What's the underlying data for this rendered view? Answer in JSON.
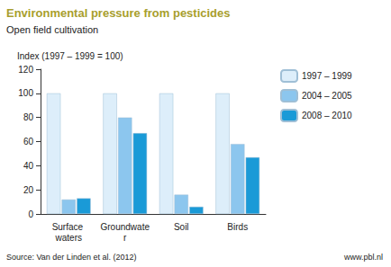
{
  "chart_data": {
    "type": "bar",
    "title": "Environmental pressure from pesticides",
    "subtitle": "Open field cultivation",
    "ylabel": "Index (1997 – 1999 = 100)",
    "annotations": [
      "Source: Van der Linden et al. (2012)",
      "www.pbl.nl"
    ],
    "categories": [
      "Surface waters",
      "Groundwater",
      "Soil",
      "Birds"
    ],
    "series": [
      {
        "name": "1997 – 1999",
        "color": "#ddeefa",
        "values": [
          100,
          100,
          100,
          100
        ]
      },
      {
        "name": "2004 – 2005",
        "color": "#8cc6ee",
        "values": [
          12,
          80,
          16,
          58
        ]
      },
      {
        "name": "2008 – 2010",
        "color": "#1a9ad7",
        "values": [
          13,
          67,
          6,
          47
        ]
      }
    ],
    "ylim": [
      0,
      120
    ],
    "yticks": [
      0,
      20,
      40,
      60,
      80,
      100,
      120
    ],
    "grid": false,
    "legend": "top-right"
  }
}
